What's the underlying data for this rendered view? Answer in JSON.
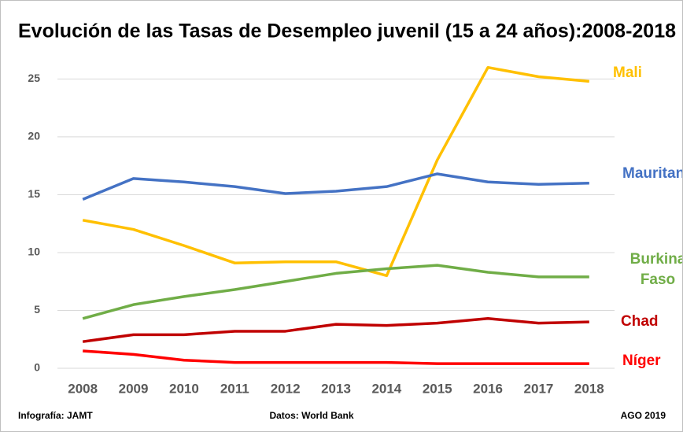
{
  "chart_data": {
    "type": "line",
    "title": "Evolución de las Tasas de Desempleo juvenil (15 a 24 años):2008-2018",
    "x": [
      2008,
      2009,
      2010,
      2011,
      2012,
      2013,
      2014,
      2015,
      2016,
      2017,
      2018
    ],
    "xlim": [
      2007.5,
      2018.5
    ],
    "xticks": [
      2008,
      2009,
      2010,
      2011,
      2012,
      2013,
      2014,
      2015,
      2016,
      2017,
      2018
    ],
    "ylim": [
      0,
      27
    ],
    "yticks": [
      0,
      5,
      10,
      15,
      20,
      25
    ],
    "grid": true,
    "series": [
      {
        "name": "Mali",
        "color": "#ffc000",
        "values": [
          12.8,
          12.0,
          10.6,
          9.1,
          9.2,
          9.2,
          8.0,
          18.0,
          26.0,
          25.2,
          24.8
        ]
      },
      {
        "name": "Mauritania",
        "color": "#4472c4",
        "values": [
          14.6,
          16.4,
          16.1,
          15.7,
          15.1,
          15.3,
          15.7,
          16.8,
          16.1,
          15.9,
          16.0
        ]
      },
      {
        "name": "Burkina Faso",
        "color": "#70ad47",
        "values": [
          4.3,
          5.5,
          6.2,
          6.8,
          7.5,
          8.2,
          8.6,
          8.9,
          8.3,
          7.9,
          7.9
        ]
      },
      {
        "name": "Chad",
        "color": "#c00000",
        "values": [
          2.3,
          2.9,
          2.9,
          3.2,
          3.2,
          3.8,
          3.7,
          3.9,
          4.3,
          3.9,
          4.0
        ]
      },
      {
        "name": "Níger",
        "color": "#ff0000",
        "values": [
          1.5,
          1.2,
          0.7,
          0.5,
          0.5,
          0.5,
          0.5,
          0.4,
          0.4,
          0.4,
          0.4
        ]
      }
    ],
    "annotations": [
      "Infografía: JAMT",
      "Datos: World Bank",
      "AGO 2019"
    ]
  }
}
